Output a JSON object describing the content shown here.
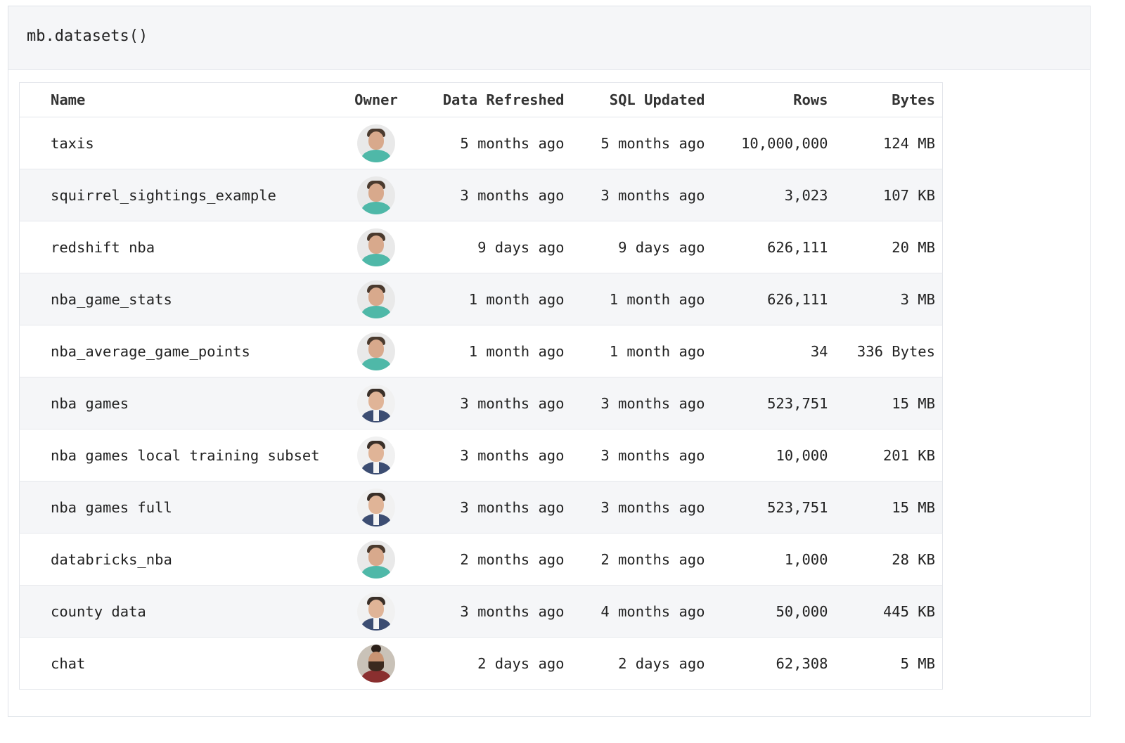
{
  "cell": {
    "code": "mb.datasets()"
  },
  "table": {
    "headers": {
      "name": "Name",
      "owner": "Owner",
      "data_refreshed": "Data Refreshed",
      "sql_updated": "SQL Updated",
      "rows": "Rows",
      "bytes": "Bytes"
    },
    "rows": [
      {
        "name": "taxis",
        "owner_avatar": "avatar-teal-shirt",
        "data_refreshed": "5 months ago",
        "sql_updated": "5 months ago",
        "rows": "10,000,000",
        "bytes": "124 MB"
      },
      {
        "name": "squirrel_sightings_example",
        "owner_avatar": "avatar-teal-shirt",
        "data_refreshed": "3 months ago",
        "sql_updated": "3 months ago",
        "rows": "3,023",
        "bytes": "107 KB"
      },
      {
        "name": "redshift nba",
        "owner_avatar": "avatar-teal-shirt",
        "data_refreshed": "9 days ago",
        "sql_updated": "9 days ago",
        "rows": "626,111",
        "bytes": "20 MB"
      },
      {
        "name": "nba_game_stats",
        "owner_avatar": "avatar-teal-shirt",
        "data_refreshed": "1 month ago",
        "sql_updated": "1 month ago",
        "rows": "626,111",
        "bytes": "3 MB"
      },
      {
        "name": "nba_average_game_points",
        "owner_avatar": "avatar-teal-shirt",
        "data_refreshed": "1 month ago",
        "sql_updated": "1 month ago",
        "rows": "34",
        "bytes": "336 Bytes"
      },
      {
        "name": "nba games",
        "owner_avatar": "avatar-suit",
        "data_refreshed": "3 months ago",
        "sql_updated": "3 months ago",
        "rows": "523,751",
        "bytes": "15 MB"
      },
      {
        "name": "nba games local training subset",
        "owner_avatar": "avatar-suit",
        "data_refreshed": "3 months ago",
        "sql_updated": "3 months ago",
        "rows": "10,000",
        "bytes": "201 KB"
      },
      {
        "name": "nba games full",
        "owner_avatar": "avatar-suit",
        "data_refreshed": "3 months ago",
        "sql_updated": "3 months ago",
        "rows": "523,751",
        "bytes": "15 MB"
      },
      {
        "name": "databricks_nba",
        "owner_avatar": "avatar-teal-shirt",
        "data_refreshed": "2 months ago",
        "sql_updated": "2 months ago",
        "rows": "1,000",
        "bytes": "28 KB"
      },
      {
        "name": "county data",
        "owner_avatar": "avatar-suit",
        "data_refreshed": "3 months ago",
        "sql_updated": "4 months ago",
        "rows": "50,000",
        "bytes": "445 KB"
      },
      {
        "name": "chat",
        "owner_avatar": "avatar-bearded",
        "data_refreshed": "2 days ago",
        "sql_updated": "2 days ago",
        "rows": "62,308",
        "bytes": "5 MB"
      }
    ]
  }
}
